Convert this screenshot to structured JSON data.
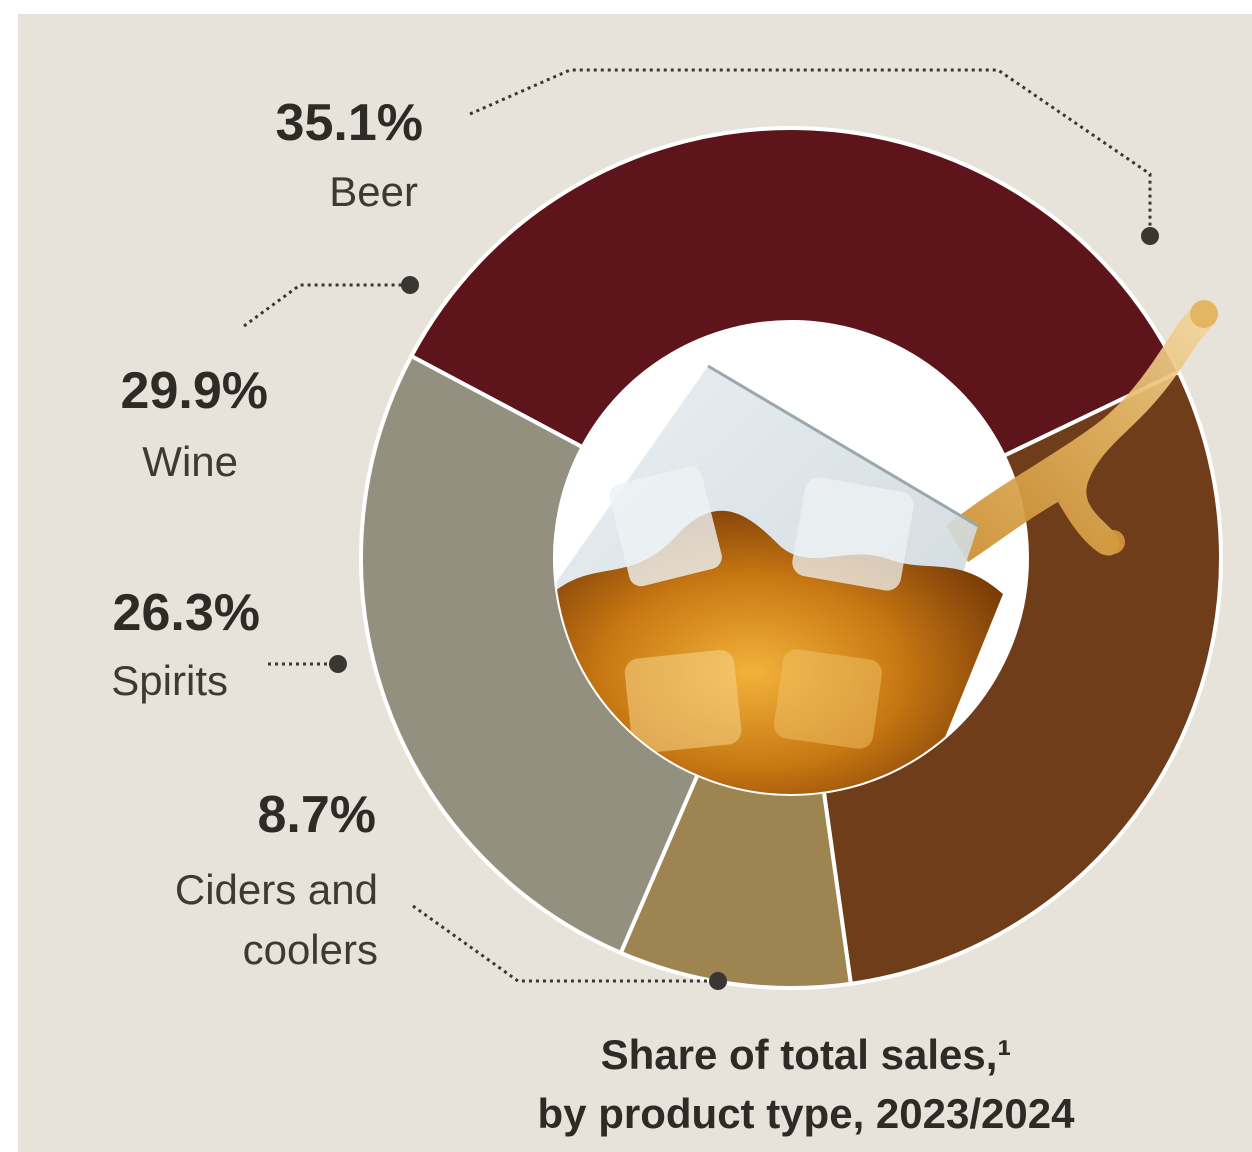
{
  "chart_data": {
    "type": "pie",
    "variant": "donut",
    "title": "Share of total sales,¹",
    "subtitle": "by product type, 2023/2024",
    "unit": "%",
    "slices": [
      {
        "label": "Beer",
        "value": 35.1,
        "display": "35.1%",
        "color": "#5e141b"
      },
      {
        "label": "Wine",
        "value": 29.9,
        "display": "29.9%",
        "color": "#6f3d1a"
      },
      {
        "label": "Spirits",
        "value": 26.3,
        "display": "26.3%",
        "color": "#94907f"
      },
      {
        "label": "Ciders and coolers",
        "label_lines": [
          "Ciders and",
          "coolers"
        ],
        "value": 8.7,
        "display": "8.7%",
        "color": "#9d8450"
      }
    ],
    "center_image": "whisky-glass-with-ice-splash"
  }
}
